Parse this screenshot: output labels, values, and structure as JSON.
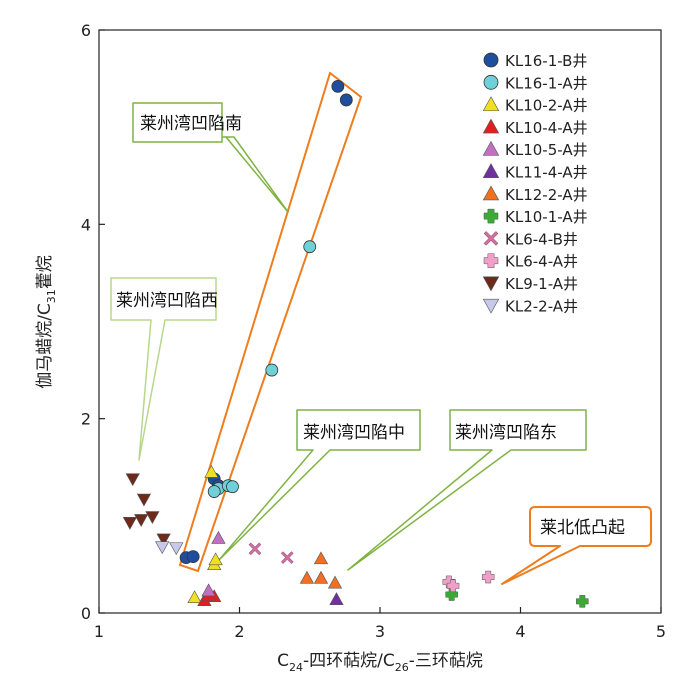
{
  "chart_data": {
    "type": "scatter",
    "xlabel": "C24-四环萜烷/C26-三环萜烷",
    "ylabel": "伽马蜡烷/C31藿烷",
    "xlabel_parts": {
      "a": "C",
      "a_sub": "24",
      "b": "-四环萜烷/C",
      "b_sub": "26",
      "c": "-三环萜烷"
    },
    "ylabel_parts": {
      "a": "伽马蜡烷/C",
      "a_sub": "31",
      "b": "藿烷"
    },
    "xlim": [
      1,
      5
    ],
    "ylim": [
      0,
      6
    ],
    "xticks": [
      1,
      2,
      3,
      4,
      5
    ],
    "yticks": [
      0,
      2,
      4,
      6
    ],
    "legend_position": "top-right",
    "series": [
      {
        "name": "KL16-1-B井",
        "marker": "circle",
        "color": "#1f4e9c",
        "points": [
          [
            2.7,
            5.42
          ],
          [
            2.76,
            5.28
          ],
          [
            1.82,
            1.38
          ],
          [
            1.85,
            1.31
          ],
          [
            1.62,
            0.57
          ],
          [
            1.67,
            0.58
          ]
        ]
      },
      {
        "name": "KL16-1-A井",
        "marker": "circle",
        "color": "#6fd0d8",
        "points": [
          [
            2.5,
            3.77
          ],
          [
            2.23,
            2.5
          ],
          [
            1.85,
            1.28
          ],
          [
            1.92,
            1.31
          ],
          [
            1.95,
            1.3
          ],
          [
            1.82,
            1.25
          ]
        ]
      },
      {
        "name": "KL10-2-A井",
        "marker": "triangle-up",
        "color": "#f0e020",
        "points": [
          [
            1.8,
            1.45
          ],
          [
            1.82,
            0.5
          ],
          [
            1.83,
            0.55
          ],
          [
            1.68,
            0.16
          ]
        ]
      },
      {
        "name": "KL10-4-A井",
        "marker": "triangle-up",
        "color": "#e0201f",
        "points": [
          [
            1.75,
            0.13
          ],
          [
            1.82,
            0.17
          ],
          [
            1.78,
            0.18
          ]
        ]
      },
      {
        "name": "KL10-5-A井",
        "marker": "triangle-up",
        "color": "#c070c0",
        "points": [
          [
            1.85,
            0.77
          ],
          [
            1.78,
            0.23
          ]
        ]
      },
      {
        "name": "KL11-4-A井",
        "marker": "triangle-up",
        "color": "#7030a0",
        "points": [
          [
            2.69,
            0.14
          ]
        ]
      },
      {
        "name": "KL12-2-A井",
        "marker": "triangle-up",
        "color": "#f07020",
        "points": [
          [
            2.58,
            0.56
          ],
          [
            2.48,
            0.36
          ],
          [
            2.58,
            0.36
          ],
          [
            2.68,
            0.31
          ]
        ]
      },
      {
        "name": "KL10-1-A井",
        "marker": "plus",
        "color": "#3aaa35",
        "points": [
          [
            3.51,
            0.19
          ],
          [
            4.44,
            0.12
          ]
        ]
      },
      {
        "name": "KL6-4-B井",
        "marker": "x",
        "color": "#d070a0",
        "points": [
          [
            2.11,
            0.66
          ],
          [
            2.34,
            0.57
          ]
        ]
      },
      {
        "name": "KL6-4-A井",
        "marker": "plus",
        "color": "#f0a0c8",
        "points": [
          [
            3.49,
            0.32
          ],
          [
            3.52,
            0.28
          ],
          [
            3.77,
            0.37
          ]
        ]
      },
      {
        "name": "KL9-1-A井",
        "marker": "triangle-down",
        "color": "#6b2a1a",
        "points": [
          [
            1.24,
            1.38
          ],
          [
            1.32,
            1.17
          ],
          [
            1.22,
            0.93
          ],
          [
            1.3,
            0.96
          ],
          [
            1.38,
            0.99
          ],
          [
            1.46,
            0.76
          ]
        ]
      },
      {
        "name": "KL2-2-A井",
        "marker": "triangle-down",
        "color": "#c8c8e8",
        "points": [
          [
            1.45,
            0.68
          ],
          [
            1.55,
            0.67
          ]
        ]
      }
    ],
    "annotations": [
      {
        "text": "莱州湾凹陷南",
        "style": "green"
      },
      {
        "text": "莱州湾凹陷西",
        "style": "green-light"
      },
      {
        "text": "莱州湾凹陷中",
        "style": "green"
      },
      {
        "text": "莱州湾凹陷东",
        "style": "green"
      },
      {
        "text": "莱北低凸起",
        "style": "orange"
      }
    ],
    "colors": {
      "axis": "#222222",
      "orange": "#ee7d1e",
      "green_border": "#7fb341",
      "green_light_border": "#b7d88a"
    }
  }
}
